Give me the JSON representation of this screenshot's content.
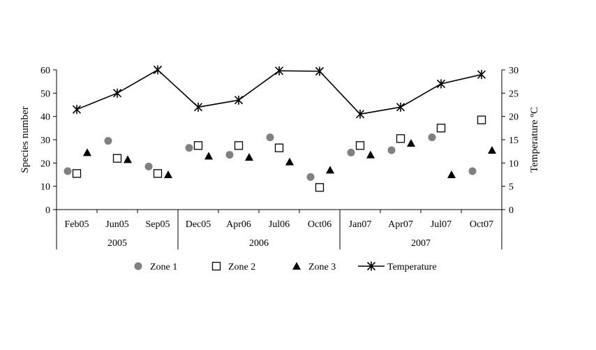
{
  "chart_data": {
    "type": "scatter",
    "categories": [
      "Feb05",
      "Jun05",
      "Sep05",
      "Dec05",
      "Apr06",
      "Jul06",
      "Oct06",
      "Jan07",
      "Apr07",
      "Jul07",
      "Oct07"
    ],
    "groups": [
      {
        "label": "2005",
        "start": 0,
        "end": 2
      },
      {
        "label": "2006",
        "start": 3,
        "end": 6
      },
      {
        "label": "2007",
        "start": 7,
        "end": 10
      }
    ],
    "ylabel": "Species number",
    "ylim": [
      0,
      60
    ],
    "yticks": [
      "0",
      "10",
      "20",
      "30",
      "40",
      "50",
      "60"
    ],
    "y2label": "Temperature ºC",
    "y2lim": [
      0,
      30
    ],
    "y2ticks": [
      "0",
      "5",
      "10",
      "15",
      "20",
      "25",
      "30"
    ],
    "grid": false,
    "legend_position": "bottom",
    "series": [
      {
        "name": "Zone 1",
        "marker": "circle",
        "color": "#808080",
        "axis": "left",
        "values": [
          16.5,
          29.5,
          18.5,
          26.5,
          23.5,
          31,
          14,
          24.5,
          25.5,
          31,
          16.5
        ]
      },
      {
        "name": "Zone 2",
        "marker": "square",
        "color": "#000000",
        "axis": "left",
        "values": [
          15.5,
          22,
          15.5,
          27.5,
          27.5,
          26.5,
          9.5,
          27.5,
          30.5,
          35,
          38.5
        ]
      },
      {
        "name": "Zone 3",
        "marker": "triangle",
        "color": "#000000",
        "axis": "left",
        "values": [
          24.5,
          21.5,
          15,
          23,
          22.5,
          20.5,
          17,
          23.5,
          28.5,
          15,
          25.5
        ]
      },
      {
        "name": "Temperature",
        "marker": "star",
        "color": "#000000",
        "axis": "right",
        "line": true,
        "values": [
          21.5,
          25,
          30,
          22,
          23.5,
          29.8,
          29.7,
          20.5,
          22,
          27,
          29
        ]
      }
    ]
  }
}
